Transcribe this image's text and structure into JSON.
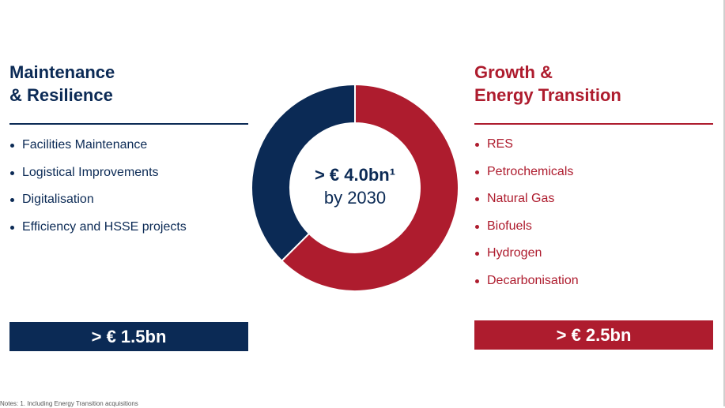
{
  "left": {
    "title_line1": "Maintenance",
    "title_line2": "& Resilience",
    "bullets": [
      "Facilities Maintenance",
      "Logistical Improvements",
      "Digitalisation",
      "Efficiency and HSSE projects"
    ],
    "amount": "> € 1.5bn",
    "color": "#0b2a55"
  },
  "right": {
    "title_line1": "Growth &",
    "title_line2": "Energy Transition",
    "bullets": [
      "RES",
      "Petrochemicals",
      "Natural Gas",
      "Biofuels",
      "Hydrogen",
      "Decarbonisation"
    ],
    "amount": "> € 2.5bn",
    "color": "#ae1c2e"
  },
  "center": {
    "amount": "> € 4.0bn¹",
    "subtitle": "by 2030"
  },
  "footnote": "Notes: 1. Including Energy Transition acquisitions",
  "chart_data": {
    "type": "pie",
    "donut": true,
    "categories": [
      "Maintenance & Resilience",
      "Growth & Energy Transition"
    ],
    "values": [
      1.5,
      2.5
    ],
    "colors": [
      "#0b2a55",
      "#ae1c2e"
    ],
    "unit": "€ bn",
    "start": "12 o'clock, clockwise: Growth & Energy Transition first"
  }
}
